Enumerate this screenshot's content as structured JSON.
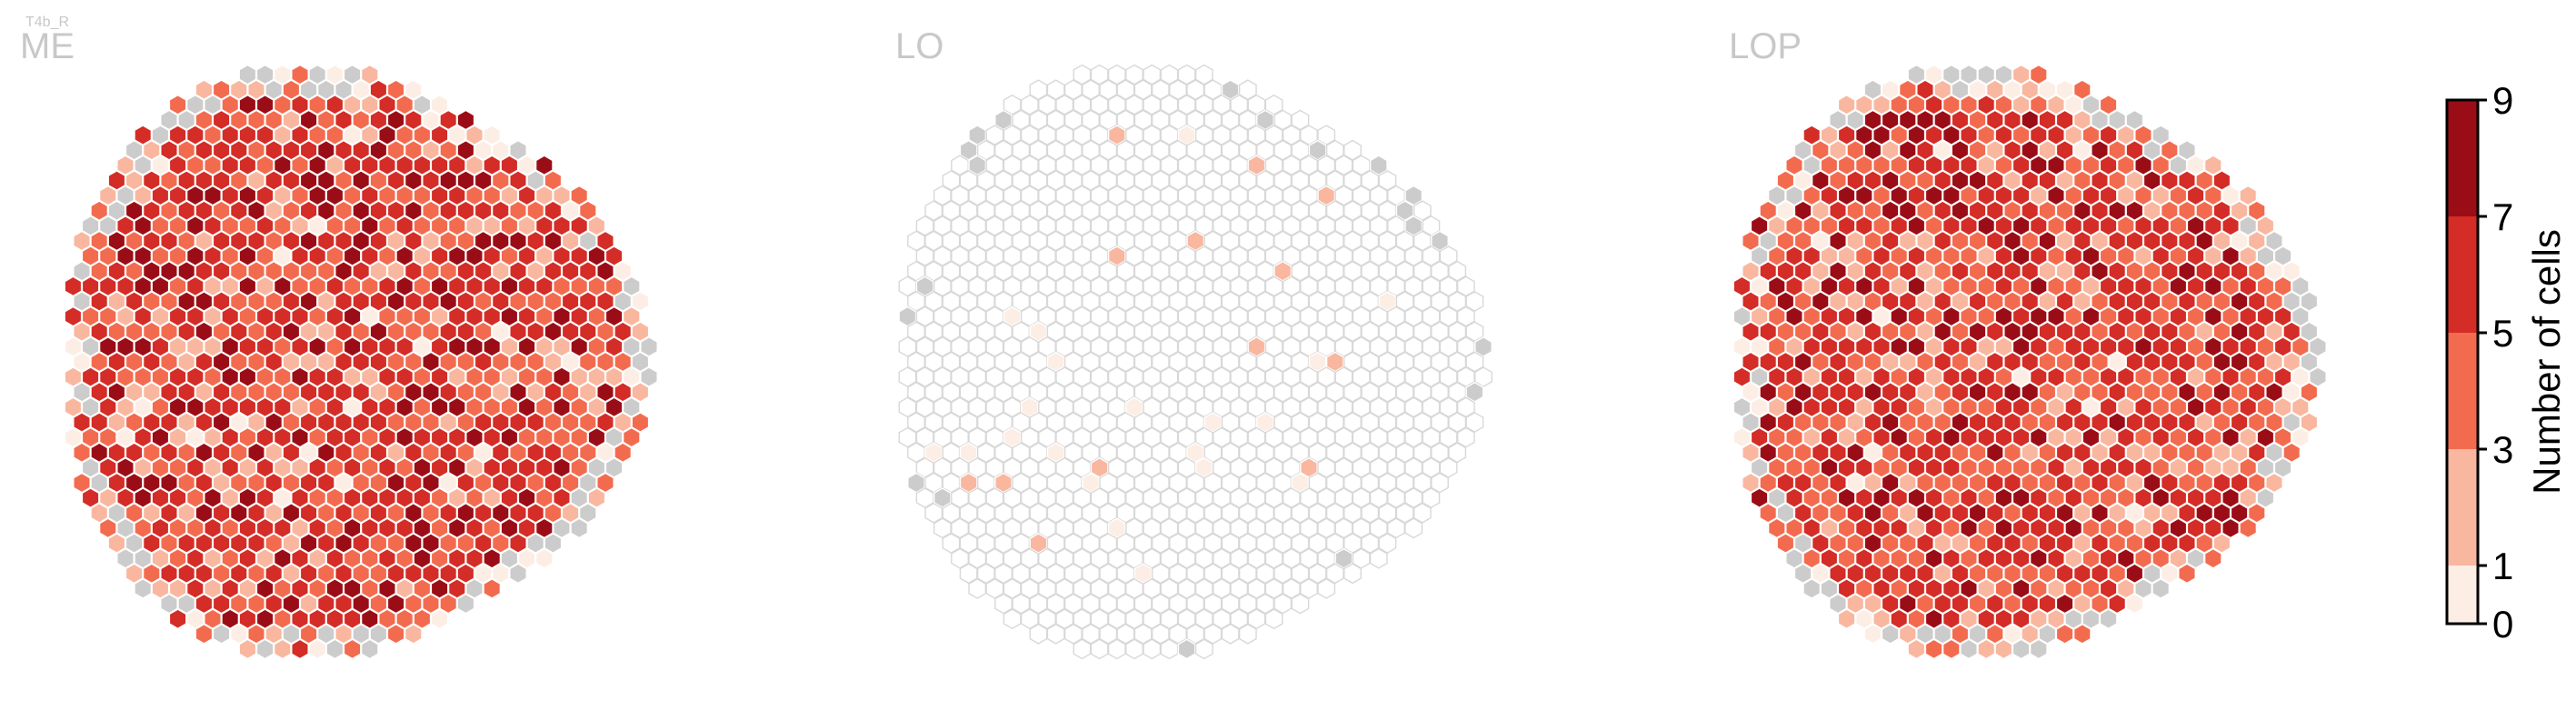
{
  "chart_data": {
    "type": "heatmap",
    "cell_type": "T4b_R",
    "grid": "hexagonal",
    "panels": [
      {
        "name": "ME",
        "fill_level": "high"
      },
      {
        "name": "LO",
        "fill_level": "sparse"
      },
      {
        "name": "LOP",
        "fill_level": "high"
      }
    ],
    "colorbar": {
      "label": "Number of cells",
      "ticks": [
        0,
        1,
        3,
        5,
        7,
        9
      ],
      "range": [
        0,
        9
      ],
      "bins": [
        {
          "min": 0,
          "max": 1,
          "color": "#fdeee5"
        },
        {
          "min": 1,
          "max": 3,
          "color": "#f9b79f"
        },
        {
          "min": 3,
          "max": 5,
          "color": "#f36b4f"
        },
        {
          "min": 5,
          "max": 7,
          "color": "#d42c26"
        },
        {
          "min": 7,
          "max": 9,
          "color": "#9b0d16"
        }
      ]
    },
    "colors": {
      "empty_fill": "#ffffff",
      "empty_stroke": "#d8d8d8",
      "no_data": "#cccccc",
      "title": "#c8c8c8"
    }
  }
}
